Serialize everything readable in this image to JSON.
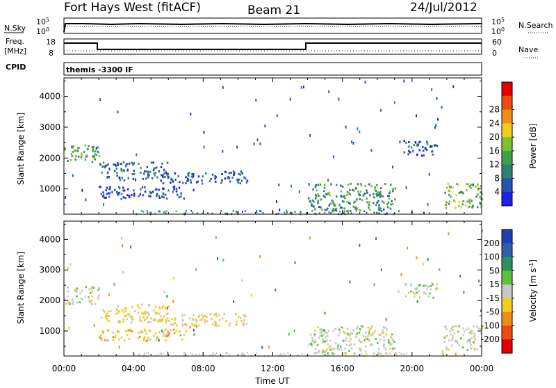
{
  "header": {
    "radar": "Fort Hays West (fitACF)",
    "beam": "Beam 21",
    "date": "24/Jul/2012"
  },
  "status_panels": {
    "nsky_label": "N.Sky",
    "nsearch_label": "N.Search",
    "noise_ticks_left": [
      "10^5",
      "10^0"
    ],
    "noise_ticks_right": [
      "10^5",
      "10^0"
    ],
    "freq_label": "Freq.",
    "freq_unit": "[MHz]",
    "freq_ticks": [
      "18",
      "8"
    ],
    "nave_label": "Nave",
    "nave_ticks": [
      "60",
      "0"
    ],
    "cpid_label": "CPID",
    "cpid_value": "themis -3300 IF"
  },
  "chart_data": [
    {
      "type": "heatmap",
      "title": "",
      "xlabel": "",
      "ylabel": "Slant Range [km]",
      "xlim": [
        "00:00",
        "24:00"
      ],
      "ylim": [
        180,
        4600
      ],
      "x_ticks": [
        "00:00",
        "04:00",
        "08:00",
        "12:00",
        "16:00",
        "20:00",
        "00:00"
      ],
      "y_ticks": [
        1000,
        2000,
        3000,
        4000
      ],
      "colorbar": {
        "label": "Power [dB]",
        "ticks": [
          "4",
          "8",
          "12",
          "16",
          "20",
          "24",
          "28"
        ],
        "range": [
          0,
          30
        ],
        "colors": [
          "#1f1fe6",
          "#2454b0",
          "#2f7f73",
          "#3fa04a",
          "#7fc035",
          "#f2cc1e",
          "#f28c18",
          "#e84c10",
          "#e00000"
        ]
      },
      "echo_regions": [
        {
          "t": [
            0.0,
            2.0
          ],
          "r": [
            1900,
            2500
          ],
          "power": 12
        },
        {
          "t": [
            2.0,
            6.0
          ],
          "r": [
            1300,
            1900
          ],
          "power": 7
        },
        {
          "t": [
            5.5,
            10.5
          ],
          "r": [
            1200,
            1600
          ],
          "power": 5
        },
        {
          "t": [
            2.0,
            7.0
          ],
          "r": [
            700,
            1100
          ],
          "power": 5
        },
        {
          "t": [
            14.0,
            19.0
          ],
          "r": [
            300,
            1200
          ],
          "power": 10
        },
        {
          "t": [
            19.5,
            21.5
          ],
          "r": [
            2100,
            2600
          ],
          "power": 5
        },
        {
          "t": [
            21.8,
            24.0
          ],
          "r": [
            400,
            1200
          ],
          "power": 14
        }
      ]
    },
    {
      "type": "heatmap",
      "title": "",
      "xlabel": "Time UT",
      "ylabel": "Slant Range [km]",
      "xlim": [
        "00:00",
        "24:00"
      ],
      "ylim": [
        180,
        4600
      ],
      "x_ticks": [
        "00:00",
        "04:00",
        "08:00",
        "12:00",
        "16:00",
        "20:00",
        "00:00"
      ],
      "y_ticks": [
        1000,
        2000,
        3000,
        4000
      ],
      "colorbar": {
        "label": "Velocity [m s^-1]",
        "ticks": [
          "200",
          "100",
          "50",
          "15",
          "-15",
          "-50",
          "-100",
          "-200"
        ],
        "range": [
          -250,
          250
        ],
        "colors": [
          "#1f3fb0",
          "#2f5fa8",
          "#2f8f5f",
          "#5fbf3f",
          "#c8c8c8",
          "#f2cc1e",
          "#f28c18",
          "#e84c10",
          "#e00000"
        ]
      },
      "echo_regions": [
        {
          "t": [
            0.0,
            2.0
          ],
          "r": [
            1900,
            2500
          ],
          "velocity": 0
        },
        {
          "t": [
            2.0,
            6.0
          ],
          "r": [
            1300,
            1900
          ],
          "velocity": -40
        },
        {
          "t": [
            5.5,
            10.5
          ],
          "r": [
            1200,
            1600
          ],
          "velocity": -30
        },
        {
          "t": [
            2.0,
            7.0
          ],
          "r": [
            700,
            1100
          ],
          "velocity": -60
        },
        {
          "t": [
            14.0,
            19.0
          ],
          "r": [
            300,
            1200
          ],
          "velocity": 0
        },
        {
          "t": [
            19.5,
            21.5
          ],
          "r": [
            2100,
            2600
          ],
          "velocity": 5
        },
        {
          "t": [
            21.8,
            24.0
          ],
          "r": [
            400,
            1200
          ],
          "velocity": 0
        }
      ]
    }
  ]
}
